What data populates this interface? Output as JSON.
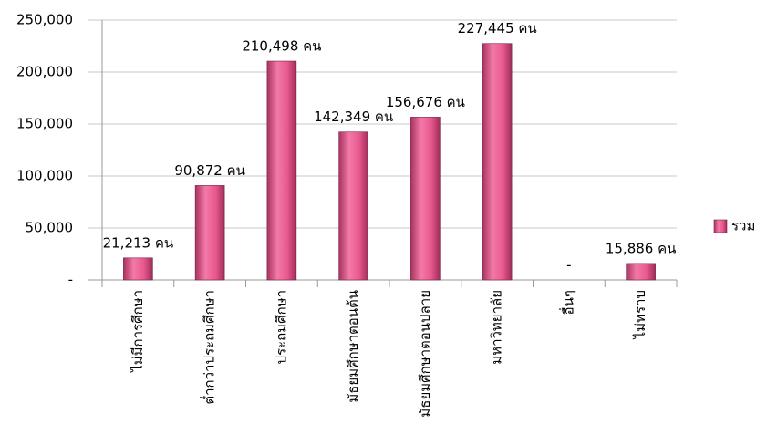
{
  "chart_data": {
    "type": "bar",
    "categories": [
      "ไม่มีการศึกษา",
      "ต่ำกว่าประถมศึกษา",
      "ประถมศึกษา",
      "มัธยมศึกษาตอนต้น",
      "มัธยมศึกษาตอนปลาย",
      "มหาวิทยาลัย",
      "อื่นๆ",
      "ไม่ทราบ"
    ],
    "series": [
      {
        "name": "รวม",
        "color": "#e8588e",
        "values": [
          21213,
          90872,
          210498,
          142349,
          156676,
          227445,
          0,
          15886
        ],
        "value_labels": [
          "21,213 คน",
          "90,872 คน",
          "210,498 คน",
          "142,349 คน",
          "156,676 คน",
          "227,445 คน",
          "-",
          "15,886 คน"
        ]
      }
    ],
    "ylim": [
      0,
      250000
    ],
    "yticks": [
      {
        "value": 0,
        "label": "-"
      },
      {
        "value": 50000,
        "label": "50,000"
      },
      {
        "value": 100000,
        "label": "100,000"
      },
      {
        "value": 150000,
        "label": "150,000"
      },
      {
        "value": 200000,
        "label": "200,000"
      },
      {
        "value": 250000,
        "label": "250,000"
      }
    ],
    "grid": true,
    "legend": "right"
  }
}
